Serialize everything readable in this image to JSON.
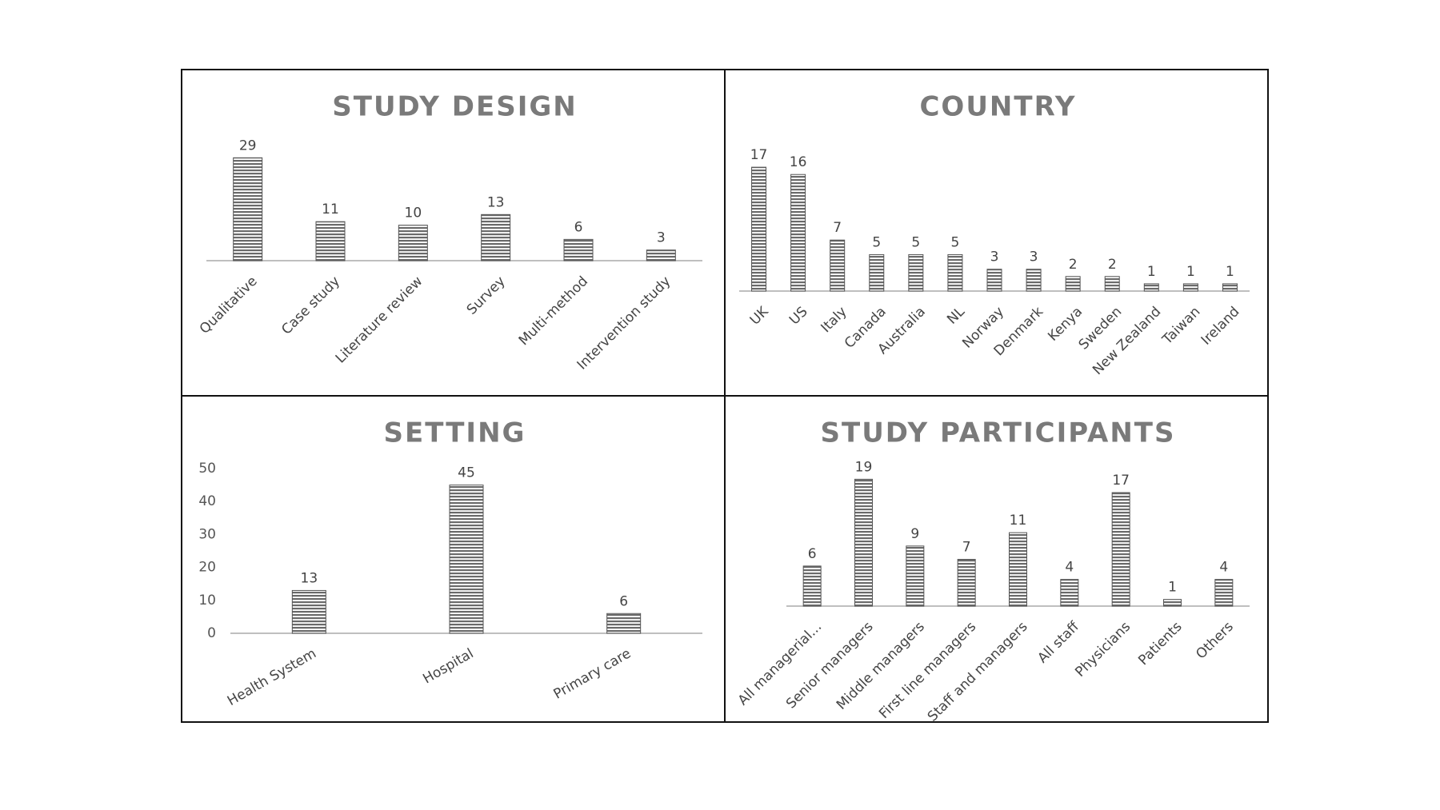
{
  "palette": {
    "bar_stroke": "#555555",
    "bar_stripe": "#6a6a6a",
    "axis": "#bfbfbf",
    "title": "#7a7a7a"
  },
  "chart_data": [
    {
      "type": "bar",
      "title": "STUDY DESIGN",
      "categories": [
        "Qualitative",
        "Case study",
        "Literature review",
        "Survey",
        "Multi-method",
        "Intervention study"
      ],
      "values": [
        29,
        11,
        10,
        13,
        6,
        3
      ],
      "ylim": [
        0,
        32
      ],
      "show_y_axis": false
    },
    {
      "type": "bar",
      "title": "COUNTRY",
      "categories": [
        "UK",
        "US",
        "Italy",
        "Canada",
        "Australia",
        "NL",
        "Norway",
        "Denmark",
        "Kenya",
        "Sweden",
        "New Zealand",
        "Taiwan",
        "Ireland"
      ],
      "values": [
        17,
        16,
        7,
        5,
        5,
        5,
        3,
        3,
        2,
        2,
        1,
        1,
        1
      ],
      "ylim": [
        0,
        18
      ],
      "show_y_axis": false
    },
    {
      "type": "bar",
      "title": "SETTING",
      "categories": [
        "Health System",
        "Hospital",
        "Primary care"
      ],
      "values": [
        13,
        45,
        6
      ],
      "ylim": [
        0,
        50
      ],
      "yticks": [
        0,
        10,
        20,
        30,
        40,
        50
      ],
      "show_y_axis": true
    },
    {
      "type": "bar",
      "title": "STUDY PARTICIPANTS",
      "categories": [
        "All managerial...",
        "Senior managers",
        "Middle managers",
        "First line managers",
        "Staff and managers",
        "All staff",
        "Physicians",
        "Patients",
        "Others"
      ],
      "values": [
        6,
        19,
        9,
        7,
        11,
        4,
        17,
        1,
        4
      ],
      "ylim": [
        0,
        20
      ],
      "show_y_axis": false
    }
  ]
}
